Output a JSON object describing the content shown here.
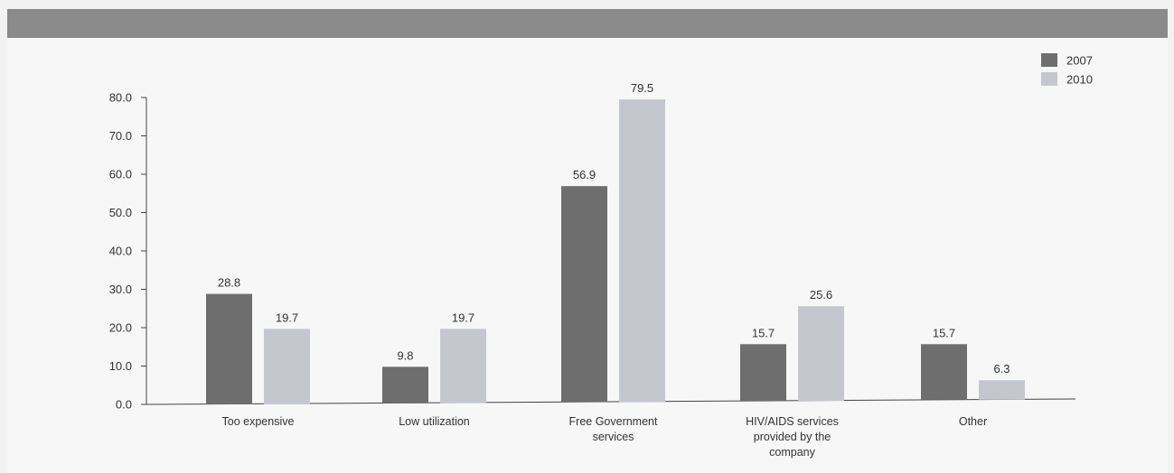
{
  "chart_data": {
    "type": "bar",
    "title": "",
    "xlabel": "",
    "ylabel": "",
    "ylim": [
      0,
      80
    ],
    "yticks": [
      "0.0",
      "10.0",
      "20.0",
      "30.0",
      "40.0",
      "50.0",
      "60.0",
      "70.0",
      "80.0"
    ],
    "legend_position": "top-right",
    "categories": [
      [
        "Too expensive"
      ],
      [
        "Low utilization"
      ],
      [
        "Free Government",
        "services"
      ],
      [
        "HIV/AIDS services",
        "provided by the",
        "company"
      ],
      [
        "Other"
      ]
    ],
    "series": [
      {
        "name": "2007",
        "color": "#6e6e6e",
        "values": [
          28.8,
          9.8,
          56.9,
          15.7,
          15.7
        ]
      },
      {
        "name": "2010",
        "color": "#c4c8ce",
        "values": [
          19.7,
          19.7,
          79.5,
          25.6,
          6.3
        ]
      }
    ]
  }
}
